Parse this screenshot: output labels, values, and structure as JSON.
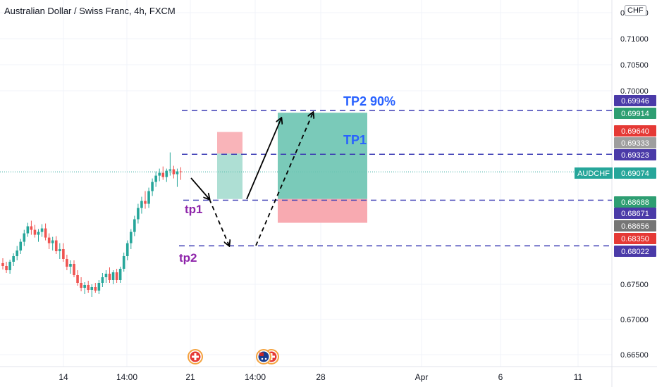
{
  "header": {
    "title": "Australian Dollar / Swiss Franc, 4h, FXCM",
    "currency": "CHF"
  },
  "colors": {
    "up": "#26a69a",
    "down": "#ef5350",
    "level_line": "#3c3cb4",
    "annotation_purple": "#8e24aa",
    "annotation_blue": "#2962ff",
    "target_zone": "#6cc4b1",
    "stop_zone": "#f7a1a8"
  },
  "chart_data": {
    "type": "candlestick",
    "symbol": "AUDCHF",
    "interval": "4h",
    "y_ticks": [
      "0.71500",
      "0.71000",
      "0.70500",
      "0.70000",
      "0.67500",
      "0.67000",
      "0.66500"
    ],
    "x_ticks": [
      "14",
      "14:00",
      "21",
      "14:00",
      "28",
      "Apr",
      "6",
      "11"
    ],
    "price_tags": [
      {
        "label": "0.69946",
        "color": "#4a3aa8"
      },
      {
        "label": "0.69914",
        "color": "#2e9e72"
      },
      {
        "label": "0.69640",
        "color": "#e53935"
      },
      {
        "label": "0.69333",
        "color": "#9e9e9e"
      },
      {
        "label": "0.69323",
        "color": "#4a3aa8"
      },
      {
        "label": "0.69074",
        "color": "#26a69a",
        "symbol": "AUDCHF"
      },
      {
        "label": "0.68688",
        "color": "#2e9e72"
      },
      {
        "label": "0.68671",
        "color": "#4a3aa8"
      },
      {
        "label": "0.68656",
        "color": "#757575"
      },
      {
        "label": "0.68350",
        "color": "#e53935"
      },
      {
        "label": "0.68022",
        "color": "#4a3aa8"
      }
    ],
    "levels": [
      0.69946,
      0.69323,
      0.68671,
      0.68022
    ],
    "current_price": 0.69074,
    "annotations": [
      {
        "text": "TP2 90%",
        "color": "#2962ff"
      },
      {
        "text": "TP1",
        "color": "#2962ff"
      },
      {
        "text": "tp1",
        "color": "#8e24aa"
      },
      {
        "text": "tp2",
        "color": "#8e24aa"
      }
    ],
    "candles": [
      [
        0.678,
        0.6787,
        0.6771,
        0.6776
      ],
      [
        0.6776,
        0.6782,
        0.6766,
        0.677
      ],
      [
        0.677,
        0.6785,
        0.6765,
        0.6782
      ],
      [
        0.6782,
        0.6794,
        0.6776,
        0.679
      ],
      [
        0.679,
        0.6802,
        0.6784,
        0.6798
      ],
      [
        0.6798,
        0.6812,
        0.6793,
        0.6808
      ],
      [
        0.6808,
        0.6825,
        0.6802,
        0.682
      ],
      [
        0.682,
        0.6835,
        0.6815,
        0.683
      ],
      [
        0.683,
        0.6838,
        0.6818,
        0.6825
      ],
      [
        0.6825,
        0.6832,
        0.6814,
        0.6818
      ],
      [
        0.6818,
        0.6826,
        0.6808,
        0.6822
      ],
      [
        0.6822,
        0.6833,
        0.6815,
        0.6827
      ],
      [
        0.6827,
        0.6834,
        0.681,
        0.6814
      ],
      [
        0.6814,
        0.682,
        0.68,
        0.6806
      ],
      [
        0.6806,
        0.6815,
        0.6798,
        0.681
      ],
      [
        0.681,
        0.6816,
        0.6793,
        0.6797
      ],
      [
        0.6797,
        0.6806,
        0.6786,
        0.68
      ],
      [
        0.68,
        0.6806,
        0.6782,
        0.6786
      ],
      [
        0.6786,
        0.6792,
        0.677,
        0.6775
      ],
      [
        0.6775,
        0.6784,
        0.6765,
        0.6779
      ],
      [
        0.6779,
        0.6784,
        0.676,
        0.6763
      ],
      [
        0.6763,
        0.677,
        0.6748,
        0.6752
      ],
      [
        0.6752,
        0.676,
        0.674,
        0.6745
      ],
      [
        0.6745,
        0.6753,
        0.6736,
        0.6749
      ],
      [
        0.6749,
        0.6755,
        0.6738,
        0.6742
      ],
      [
        0.6742,
        0.675,
        0.6732,
        0.6746
      ],
      [
        0.6746,
        0.6752,
        0.6738,
        0.6741
      ],
      [
        0.6741,
        0.6756,
        0.6736,
        0.6752
      ],
      [
        0.6752,
        0.6766,
        0.6746,
        0.676
      ],
      [
        0.676,
        0.677,
        0.6752,
        0.6765
      ],
      [
        0.6765,
        0.6774,
        0.6752,
        0.6756
      ],
      [
        0.6756,
        0.677,
        0.675,
        0.6767
      ],
      [
        0.6767,
        0.6772,
        0.6752,
        0.6756
      ],
      [
        0.6756,
        0.6775,
        0.6752,
        0.6772
      ],
      [
        0.6772,
        0.6795,
        0.6768,
        0.679
      ],
      [
        0.679,
        0.681,
        0.6784,
        0.6806
      ],
      [
        0.6806,
        0.6826,
        0.68,
        0.6822
      ],
      [
        0.6822,
        0.6845,
        0.6816,
        0.684
      ],
      [
        0.684,
        0.6862,
        0.6834,
        0.6856
      ],
      [
        0.6856,
        0.6872,
        0.6848,
        0.6866
      ],
      [
        0.6866,
        0.688,
        0.6855,
        0.6862
      ],
      [
        0.6862,
        0.6885,
        0.6856,
        0.688
      ],
      [
        0.688,
        0.6898,
        0.6873,
        0.6893
      ],
      [
        0.6893,
        0.6908,
        0.6886,
        0.6902
      ],
      [
        0.6902,
        0.6912,
        0.6894,
        0.6906
      ],
      [
        0.6906,
        0.6915,
        0.6896,
        0.69
      ],
      [
        0.69,
        0.6912,
        0.6893,
        0.6909
      ],
      [
        0.6909,
        0.6935,
        0.6902,
        0.6911
      ],
      [
        0.6911,
        0.6916,
        0.6898,
        0.6904
      ],
      [
        0.6904,
        0.6912,
        0.6886,
        0.6908
      ],
      [
        0.6908,
        0.6914,
        0.6896,
        0.6907
      ]
    ]
  },
  "events": [
    {
      "name": "swiss-flag-icon"
    },
    {
      "name": "australia-flag-icon"
    },
    {
      "name": "swiss-flag-icon-2"
    }
  ]
}
